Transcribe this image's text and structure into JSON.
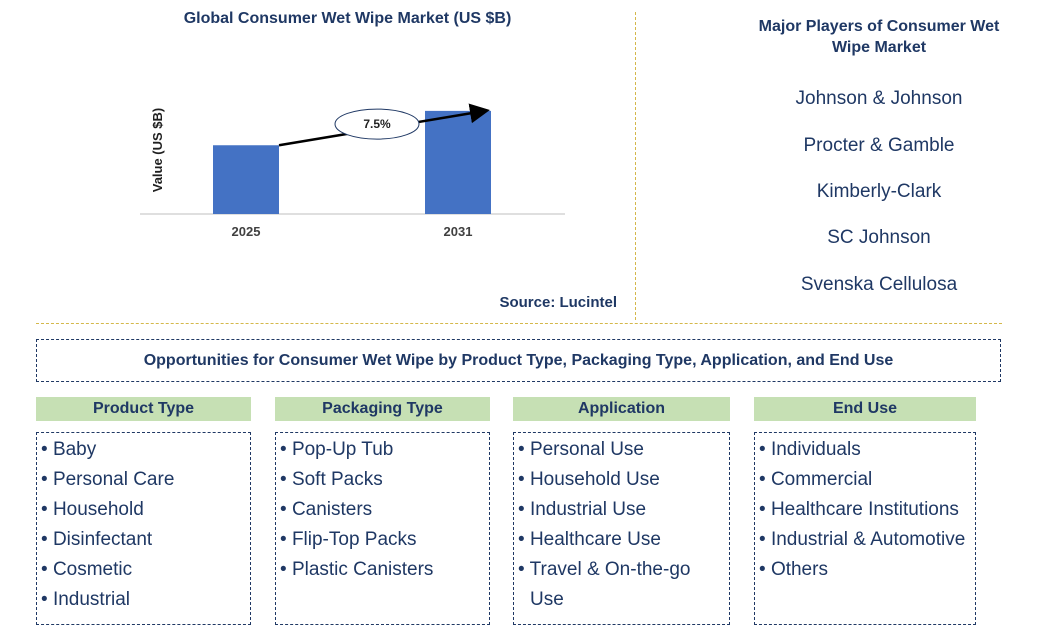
{
  "chart_data": {
    "type": "bar",
    "title": "Global Consumer Wet Wipe Market (US $B)",
    "ylabel": "Value (US $B)",
    "xlabel": "",
    "categories": [
      "2025",
      "2031"
    ],
    "values": [
      1.0,
      1.5
    ],
    "ylim": [
      0,
      1.6
    ],
    "bar_color": "#4472c4",
    "annotation": {
      "label": "7.5%",
      "from": "2025",
      "to": "2031"
    },
    "grid": false,
    "legend": "none"
  },
  "source": "Source: Lucintel",
  "players": {
    "title": "Major Players of Consumer Wet Wipe Market",
    "items": [
      "Johnson & Johnson",
      "Procter & Gamble",
      "Kimberly-Clark",
      "SC Johnson",
      "Svenska Cellulosa"
    ]
  },
  "opportunities": {
    "title": "Opportunities for Consumer Wet Wipe by Product Type, Packaging Type, Application, and End Use",
    "columns": [
      {
        "heading": "Product Type",
        "items": [
          "Baby",
          "Personal Care",
          "Household",
          "Disinfectant",
          "Cosmetic",
          "Industrial"
        ]
      },
      {
        "heading": "Packaging Type",
        "items": [
          "Pop-Up Tub",
          "Soft Packs",
          "Canisters",
          "Flip-Top Packs",
          "Plastic Canisters"
        ]
      },
      {
        "heading": "Application",
        "items": [
          "Personal Use",
          "Household Use",
          "Industrial Use",
          "Healthcare Use",
          "Travel & On-the-go Use"
        ]
      },
      {
        "heading": "End Use",
        "items": [
          "Individuals",
          "Commercial",
          "Healthcare Institutions",
          "Industrial & Automotive",
          "Others"
        ]
      }
    ]
  }
}
